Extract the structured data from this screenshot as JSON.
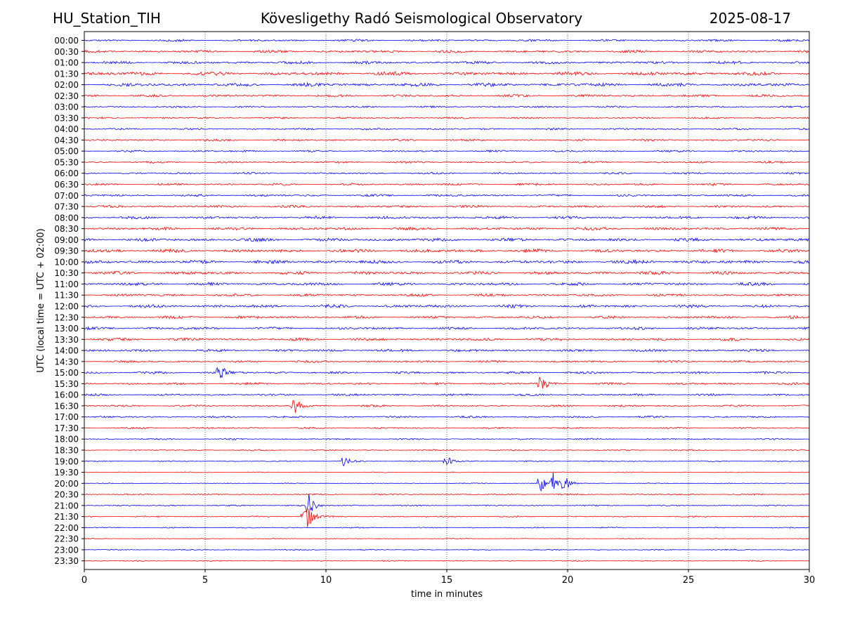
{
  "header": {
    "station": "HU_Station_TIH",
    "title": "Kövesligethy Radó Seismological Observatory",
    "date": "2025-08-17"
  },
  "chart_data": {
    "type": "line",
    "title": "Kövesligethy Radó Seismological Observatory",
    "xlabel": "time in minutes",
    "ylabel": "UTC (local time = UTC + 02:00)",
    "xlim": [
      0,
      30
    ],
    "xticks": [
      "0",
      "5",
      "10",
      "15",
      "20",
      "25",
      "30"
    ],
    "grid": "vertical dotted at each x tick",
    "colors": [
      "#0000ff",
      "#ff0000"
    ],
    "rows": [
      "00:00",
      "00:30",
      "01:00",
      "01:30",
      "02:00",
      "02:30",
      "03:00",
      "03:30",
      "04:00",
      "04:30",
      "05:00",
      "05:30",
      "06:00",
      "06:30",
      "07:00",
      "07:30",
      "08:00",
      "08:30",
      "09:00",
      "09:30",
      "10:00",
      "10:30",
      "11:00",
      "11:30",
      "12:00",
      "12:30",
      "13:00",
      "13:30",
      "14:00",
      "14:30",
      "15:00",
      "15:30",
      "16:00",
      "16:30",
      "17:00",
      "17:30",
      "18:00",
      "18:30",
      "19:00",
      "19:30",
      "20:00",
      "20:30",
      "21:00",
      "21:30",
      "22:00",
      "22:30",
      "23:00",
      "23:30"
    ],
    "noise_level": [
      0.5,
      0.6,
      0.65,
      0.85,
      0.8,
      0.55,
      0.4,
      0.4,
      0.4,
      0.45,
      0.45,
      0.45,
      0.45,
      0.5,
      0.5,
      0.55,
      0.65,
      0.7,
      0.75,
      0.8,
      0.8,
      0.75,
      0.7,
      0.6,
      0.7,
      0.6,
      0.6,
      0.65,
      0.6,
      0.5,
      0.55,
      0.5,
      0.5,
      0.45,
      0.45,
      0.4,
      0.35,
      0.3,
      0.25,
      0.2,
      0.2,
      0.3,
      0.3,
      0.3,
      0.25,
      0.2,
      0.25,
      0.25
    ],
    "events": [
      {
        "row": "15:00",
        "minute": 5.6,
        "amplitude": 1.6
      },
      {
        "row": "15:30",
        "minute": 18.9,
        "amplitude": 1.7
      },
      {
        "row": "16:30",
        "minute": 8.7,
        "amplitude": 1.5
      },
      {
        "row": "19:00",
        "minute": 10.8,
        "amplitude": 1.0
      },
      {
        "row": "19:00",
        "minute": 15.0,
        "amplitude": 0.9
      },
      {
        "row": "20:00",
        "minute": 18.9,
        "amplitude": 1.4
      },
      {
        "row": "20:00",
        "minute": 19.4,
        "amplitude": 1.6
      },
      {
        "row": "20:00",
        "minute": 19.9,
        "amplitude": 1.2
      },
      {
        "row": "21:00",
        "minute": 9.3,
        "amplitude": 1.9
      },
      {
        "row": "21:30",
        "minute": 9.1,
        "amplitude": 1.5
      },
      {
        "row": "21:30",
        "minute": 9.3,
        "amplitude": 1.4
      }
    ]
  }
}
